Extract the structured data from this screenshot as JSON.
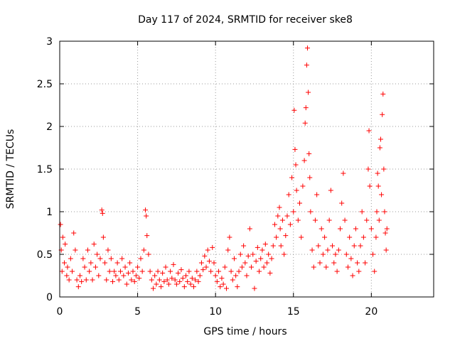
{
  "chart_data": {
    "type": "scatter",
    "title": "Day 117 of 2024, SRMTID for receiver ske8",
    "xlabel": "GPS time / hours",
    "ylabel": "SRMTID / TECUs",
    "xlim": [
      0,
      24
    ],
    "ylim": [
      0,
      3
    ],
    "xticks": [
      0,
      5,
      10,
      15,
      20
    ],
    "xtick_labels": [
      "0",
      "5",
      "10",
      "15",
      "20"
    ],
    "yticks": [
      0,
      0.5,
      1,
      1.5,
      2,
      2.5,
      3
    ],
    "ytick_labels": [
      "0",
      "0.5",
      "1",
      "1.5",
      "2",
      "2.5",
      "3"
    ],
    "grid": true,
    "marker": "+",
    "series": [
      {
        "name": "SRMTID",
        "color": "#ff0000",
        "points": [
          [
            0.05,
            0.85
          ],
          [
            0.1,
            0.55
          ],
          [
            0.15,
            0.3
          ],
          [
            0.2,
            0.7
          ],
          [
            0.3,
            0.4
          ],
          [
            0.35,
            0.62
          ],
          [
            0.45,
            0.25
          ],
          [
            0.5,
            0.35
          ],
          [
            0.6,
            0.2
          ],
          [
            0.7,
            0.45
          ],
          [
            0.8,
            0.3
          ],
          [
            0.9,
            0.75
          ],
          [
            1.0,
            0.55
          ],
          [
            1.1,
            0.2
          ],
          [
            1.2,
            0.12
          ],
          [
            1.3,
            0.25
          ],
          [
            1.4,
            0.18
          ],
          [
            1.5,
            0.45
          ],
          [
            1.6,
            0.35
          ],
          [
            1.7,
            0.2
          ],
          [
            1.8,
            0.55
          ],
          [
            1.9,
            0.3
          ],
          [
            2.0,
            0.4
          ],
          [
            2.1,
            0.2
          ],
          [
            2.2,
            0.62
          ],
          [
            2.3,
            0.35
          ],
          [
            2.4,
            0.5
          ],
          [
            2.5,
            0.25
          ],
          [
            2.6,
            0.45
          ],
          [
            2.7,
            1.02
          ],
          [
            2.75,
            0.98
          ],
          [
            2.8,
            0.7
          ],
          [
            2.9,
            0.4
          ],
          [
            3.0,
            0.2
          ],
          [
            3.1,
            0.55
          ],
          [
            3.2,
            0.3
          ],
          [
            3.3,
            0.45
          ],
          [
            3.4,
            0.18
          ],
          [
            3.5,
            0.3
          ],
          [
            3.6,
            0.25
          ],
          [
            3.7,
            0.4
          ],
          [
            3.8,
            0.2
          ],
          [
            3.9,
            0.3
          ],
          [
            4.0,
            0.45
          ],
          [
            4.1,
            0.25
          ],
          [
            4.2,
            0.35
          ],
          [
            4.3,
            0.15
          ],
          [
            4.4,
            0.28
          ],
          [
            4.5,
            0.4
          ],
          [
            4.6,
            0.2
          ],
          [
            4.7,
            0.3
          ],
          [
            4.8,
            0.18
          ],
          [
            4.9,
            0.25
          ],
          [
            5.0,
            0.35
          ],
          [
            5.1,
            0.22
          ],
          [
            5.2,
            0.45
          ],
          [
            5.3,
            0.3
          ],
          [
            5.4,
            0.55
          ],
          [
            5.5,
            1.02
          ],
          [
            5.55,
            0.95
          ],
          [
            5.6,
            0.72
          ],
          [
            5.7,
            0.5
          ],
          [
            5.8,
            0.3
          ],
          [
            5.9,
            0.2
          ],
          [
            6.0,
            0.1
          ],
          [
            6.1,
            0.25
          ],
          [
            6.2,
            0.15
          ],
          [
            6.3,
            0.3
          ],
          [
            6.4,
            0.2
          ],
          [
            6.5,
            0.12
          ],
          [
            6.6,
            0.28
          ],
          [
            6.7,
            0.18
          ],
          [
            6.8,
            0.35
          ],
          [
            6.9,
            0.2
          ],
          [
            7.0,
            0.15
          ],
          [
            7.1,
            0.3
          ],
          [
            7.2,
            0.22
          ],
          [
            7.3,
            0.38
          ],
          [
            7.4,
            0.2
          ],
          [
            7.5,
            0.15
          ],
          [
            7.6,
            0.28
          ],
          [
            7.7,
            0.18
          ],
          [
            7.8,
            0.32
          ],
          [
            7.9,
            0.22
          ],
          [
            8.0,
            0.12
          ],
          [
            8.1,
            0.25
          ],
          [
            8.2,
            0.18
          ],
          [
            8.3,
            0.3
          ],
          [
            8.4,
            0.15
          ],
          [
            8.5,
            0.22
          ],
          [
            8.6,
            0.12
          ],
          [
            8.7,
            0.2
          ],
          [
            8.8,
            0.3
          ],
          [
            8.9,
            0.18
          ],
          [
            9.0,
            0.25
          ],
          [
            9.1,
            0.4
          ],
          [
            9.2,
            0.32
          ],
          [
            9.3,
            0.48
          ],
          [
            9.4,
            0.35
          ],
          [
            9.5,
            0.55
          ],
          [
            9.6,
            0.42
          ],
          [
            9.7,
            0.3
          ],
          [
            9.8,
            0.58
          ],
          [
            9.9,
            0.4
          ],
          [
            10.0,
            0.25
          ],
          [
            10.1,
            0.18
          ],
          [
            10.2,
            0.3
          ],
          [
            10.3,
            0.12
          ],
          [
            10.4,
            0.22
          ],
          [
            10.5,
            0.15
          ],
          [
            10.6,
            0.35
          ],
          [
            10.7,
            0.1
          ],
          [
            10.8,
            0.55
          ],
          [
            10.9,
            0.7
          ],
          [
            11.0,
            0.3
          ],
          [
            11.1,
            0.2
          ],
          [
            11.2,
            0.45
          ],
          [
            11.3,
            0.25
          ],
          [
            11.4,
            0.12
          ],
          [
            11.5,
            0.3
          ],
          [
            11.6,
            0.5
          ],
          [
            11.7,
            0.35
          ],
          [
            11.8,
            0.6
          ],
          [
            11.9,
            0.4
          ],
          [
            12.0,
            0.25
          ],
          [
            12.1,
            0.48
          ],
          [
            12.2,
            0.8
          ],
          [
            12.3,
            0.35
          ],
          [
            12.4,
            0.5
          ],
          [
            12.5,
            0.1
          ],
          [
            12.6,
            0.42
          ],
          [
            12.7,
            0.58
          ],
          [
            12.8,
            0.3
          ],
          [
            12.9,
            0.45
          ],
          [
            13.0,
            0.55
          ],
          [
            13.1,
            0.35
          ],
          [
            13.2,
            0.62
          ],
          [
            13.3,
            0.4
          ],
          [
            13.4,
            0.5
          ],
          [
            13.5,
            0.28
          ],
          [
            13.6,
            0.45
          ],
          [
            13.7,
            0.6
          ],
          [
            13.8,
            0.85
          ],
          [
            13.9,
            0.7
          ],
          [
            14.0,
            0.95
          ],
          [
            14.1,
            1.05
          ],
          [
            14.15,
            0.8
          ],
          [
            14.2,
            0.6
          ],
          [
            14.3,
            0.9
          ],
          [
            14.4,
            0.5
          ],
          [
            14.5,
            0.72
          ],
          [
            14.6,
            0.95
          ],
          [
            14.7,
            1.2
          ],
          [
            14.8,
            0.85
          ],
          [
            14.9,
            1.4
          ],
          [
            15.0,
            1.0
          ],
          [
            15.05,
            2.19
          ],
          [
            15.1,
            1.73
          ],
          [
            15.15,
            1.55
          ],
          [
            15.2,
            1.25
          ],
          [
            15.3,
            0.9
          ],
          [
            15.4,
            1.1
          ],
          [
            15.5,
            0.7
          ],
          [
            15.6,
            1.3
          ],
          [
            15.7,
            1.6
          ],
          [
            15.75,
            2.04
          ],
          [
            15.8,
            2.22
          ],
          [
            15.85,
            2.72
          ],
          [
            15.9,
            2.92
          ],
          [
            15.95,
            2.4
          ],
          [
            16.0,
            1.68
          ],
          [
            16.05,
            1.4
          ],
          [
            16.1,
            1.0
          ],
          [
            16.2,
            0.55
          ],
          [
            16.3,
            0.35
          ],
          [
            16.4,
            0.9
          ],
          [
            16.5,
            1.2
          ],
          [
            16.6,
            0.6
          ],
          [
            16.7,
            0.4
          ],
          [
            16.8,
            0.8
          ],
          [
            16.9,
            0.5
          ],
          [
            17.0,
            0.7
          ],
          [
            17.1,
            0.35
          ],
          [
            17.2,
            0.55
          ],
          [
            17.3,
            0.9
          ],
          [
            17.4,
            1.25
          ],
          [
            17.5,
            0.6
          ],
          [
            17.6,
            0.4
          ],
          [
            17.7,
            0.5
          ],
          [
            17.8,
            0.3
          ],
          [
            17.9,
            0.55
          ],
          [
            18.0,
            0.8
          ],
          [
            18.1,
            1.1
          ],
          [
            18.2,
            1.45
          ],
          [
            18.3,
            0.9
          ],
          [
            18.4,
            0.5
          ],
          [
            18.5,
            0.35
          ],
          [
            18.6,
            0.7
          ],
          [
            18.7,
            0.45
          ],
          [
            18.8,
            0.25
          ],
          [
            18.9,
            0.6
          ],
          [
            19.0,
            0.8
          ],
          [
            19.1,
            0.4
          ],
          [
            19.2,
            0.3
          ],
          [
            19.3,
            0.6
          ],
          [
            19.4,
            1.0
          ],
          [
            19.5,
            0.7
          ],
          [
            19.6,
            0.4
          ],
          [
            19.7,
            0.9
          ],
          [
            19.8,
            1.5
          ],
          [
            19.85,
            1.95
          ],
          [
            19.9,
            1.3
          ],
          [
            20.0,
            0.8
          ],
          [
            20.1,
            0.5
          ],
          [
            20.2,
            0.3
          ],
          [
            20.3,
            0.7
          ],
          [
            20.35,
            1.0
          ],
          [
            20.4,
            1.45
          ],
          [
            20.45,
            1.3
          ],
          [
            20.5,
            0.9
          ],
          [
            20.55,
            1.75
          ],
          [
            20.6,
            1.85
          ],
          [
            20.65,
            1.2
          ],
          [
            20.7,
            2.14
          ],
          [
            20.75,
            2.38
          ],
          [
            20.8,
            1.5
          ],
          [
            20.85,
            1.0
          ],
          [
            20.9,
            0.75
          ],
          [
            20.95,
            0.55
          ],
          [
            21.0,
            0.8
          ]
        ]
      }
    ]
  },
  "colors": {
    "marker": "#ff0000",
    "grid": "#999999",
    "axis": "#000000",
    "background": "#ffffff"
  }
}
